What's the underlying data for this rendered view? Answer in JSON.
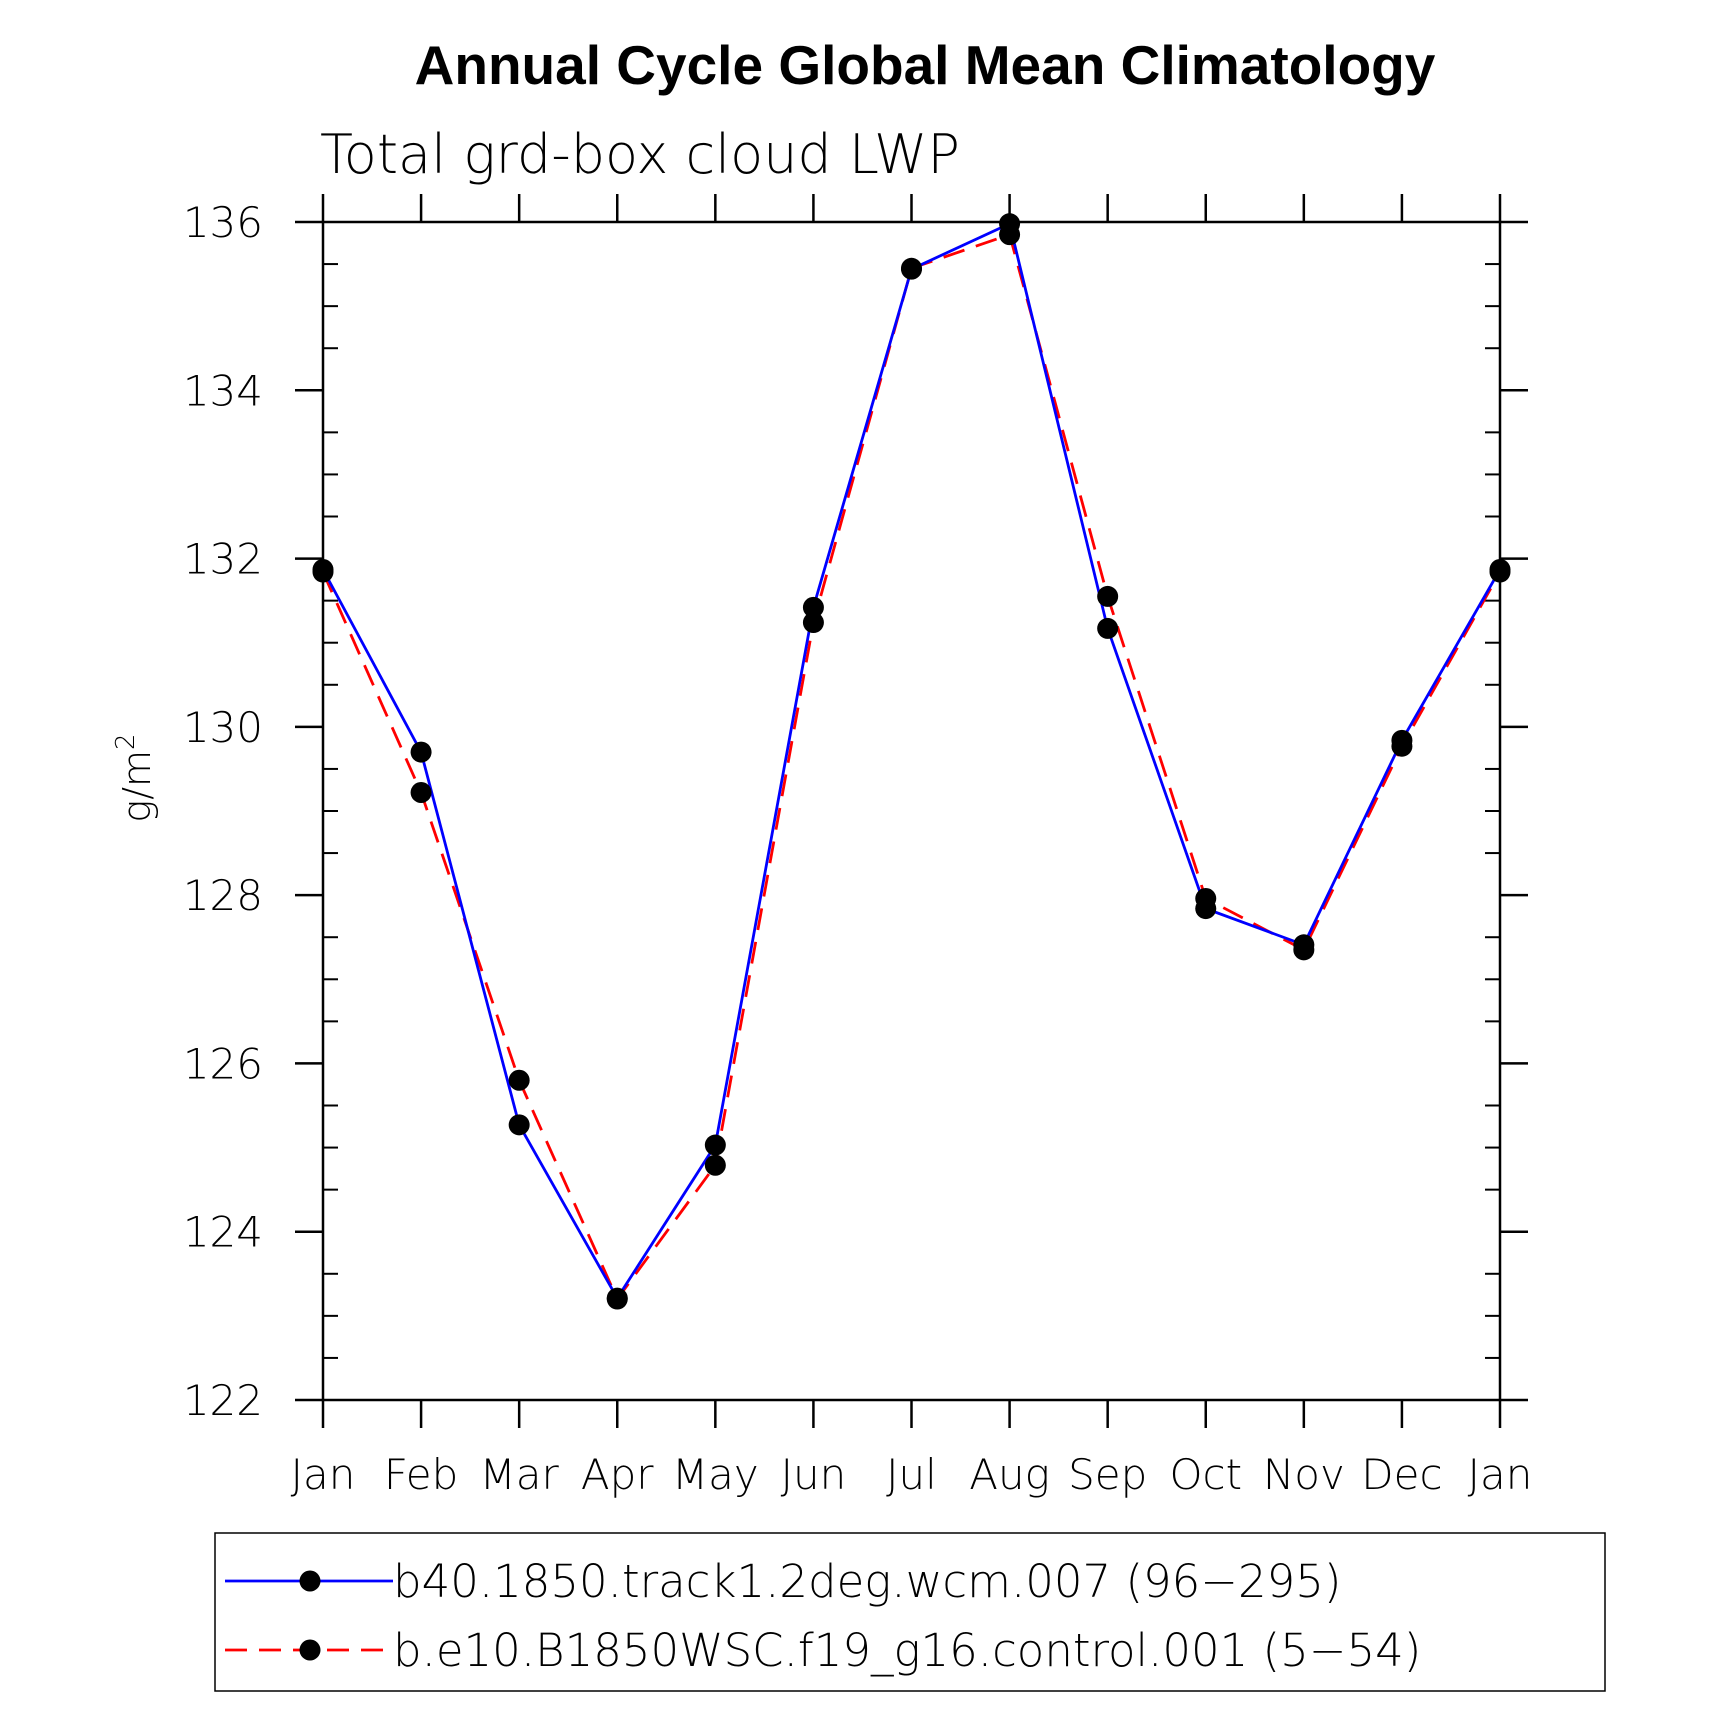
{
  "chart_data": {
    "type": "line",
    "title": "Annual Cycle Global Mean Climatology",
    "subtitle": "Total grd-box cloud LWP",
    "ylabel": "g/m",
    "ylabel_superscript": "2",
    "xlabel": "",
    "ylim": [
      122,
      136
    ],
    "yticks": [
      122,
      124,
      126,
      128,
      130,
      132,
      134,
      136
    ],
    "categories": [
      "Jan",
      "Feb",
      "Mar",
      "Apr",
      "May",
      "Jun",
      "Jul",
      "Aug",
      "Sep",
      "Oct",
      "Nov",
      "Dec",
      "Jan"
    ],
    "series": [
      {
        "name": "b40.1850.track1.2deg.wcm.007 (96−295)",
        "color": "#0000ff",
        "style": "solid",
        "marker": "filled-circle",
        "values": [
          131.87,
          129.7,
          125.27,
          123.21,
          125.03,
          131.42,
          135.44,
          135.98,
          131.17,
          127.84,
          127.41,
          129.84,
          131.87
        ]
      },
      {
        "name": "b.e10.B1850WSC.f19_g16.control.001 (5−54)",
        "color": "#ff0000",
        "style": "dashed",
        "marker": "filled-circle",
        "values": [
          131.84,
          129.22,
          125.8,
          123.2,
          124.79,
          131.24,
          135.45,
          135.85,
          131.55,
          127.96,
          127.35,
          129.77,
          131.84
        ]
      }
    ],
    "legend_position": "bottom"
  }
}
